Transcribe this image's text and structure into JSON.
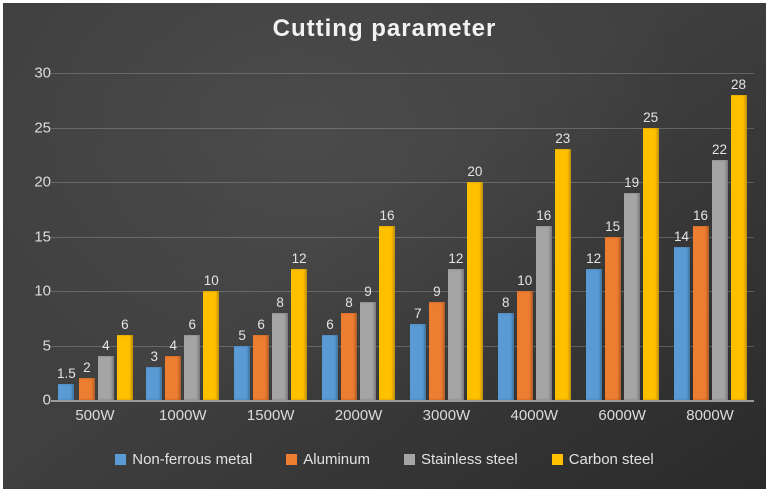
{
  "title": "Cutting parameter",
  "colors": {
    "background": "#3a3a3a",
    "frame_border": "#ffffff",
    "gridline": "rgba(255,255,255,0.20)",
    "axis_line": "#9a9a9a",
    "text": "#e2e2e2"
  },
  "chart_data": {
    "type": "bar",
    "title": "Cutting parameter",
    "categories": [
      "500W",
      "1000W",
      "1500W",
      "2000W",
      "3000W",
      "4000W",
      "6000W",
      "8000W"
    ],
    "series": [
      {
        "name": "Non-ferrous metal",
        "color": "#5B9BD5",
        "values": [
          1.5,
          3,
          5,
          6,
          7,
          8,
          12,
          14
        ]
      },
      {
        "name": "Aluminum",
        "color": "#ED7D31",
        "values": [
          2,
          4,
          6,
          8,
          9,
          10,
          15,
          16
        ]
      },
      {
        "name": "Stainless steel",
        "color": "#A5A5A5",
        "values": [
          4,
          6,
          8,
          9,
          12,
          16,
          19,
          22
        ]
      },
      {
        "name": "Carbon steel",
        "color": "#FFC000",
        "values": [
          6,
          10,
          12,
          16,
          20,
          23,
          25,
          28
        ]
      }
    ],
    "xlabel": "",
    "ylabel": "",
    "ylim": [
      0,
      30
    ],
    "yticks": [
      0,
      5,
      10,
      15,
      20,
      25,
      30
    ],
    "grid": true,
    "data_labels": true,
    "legend_position": "bottom"
  }
}
